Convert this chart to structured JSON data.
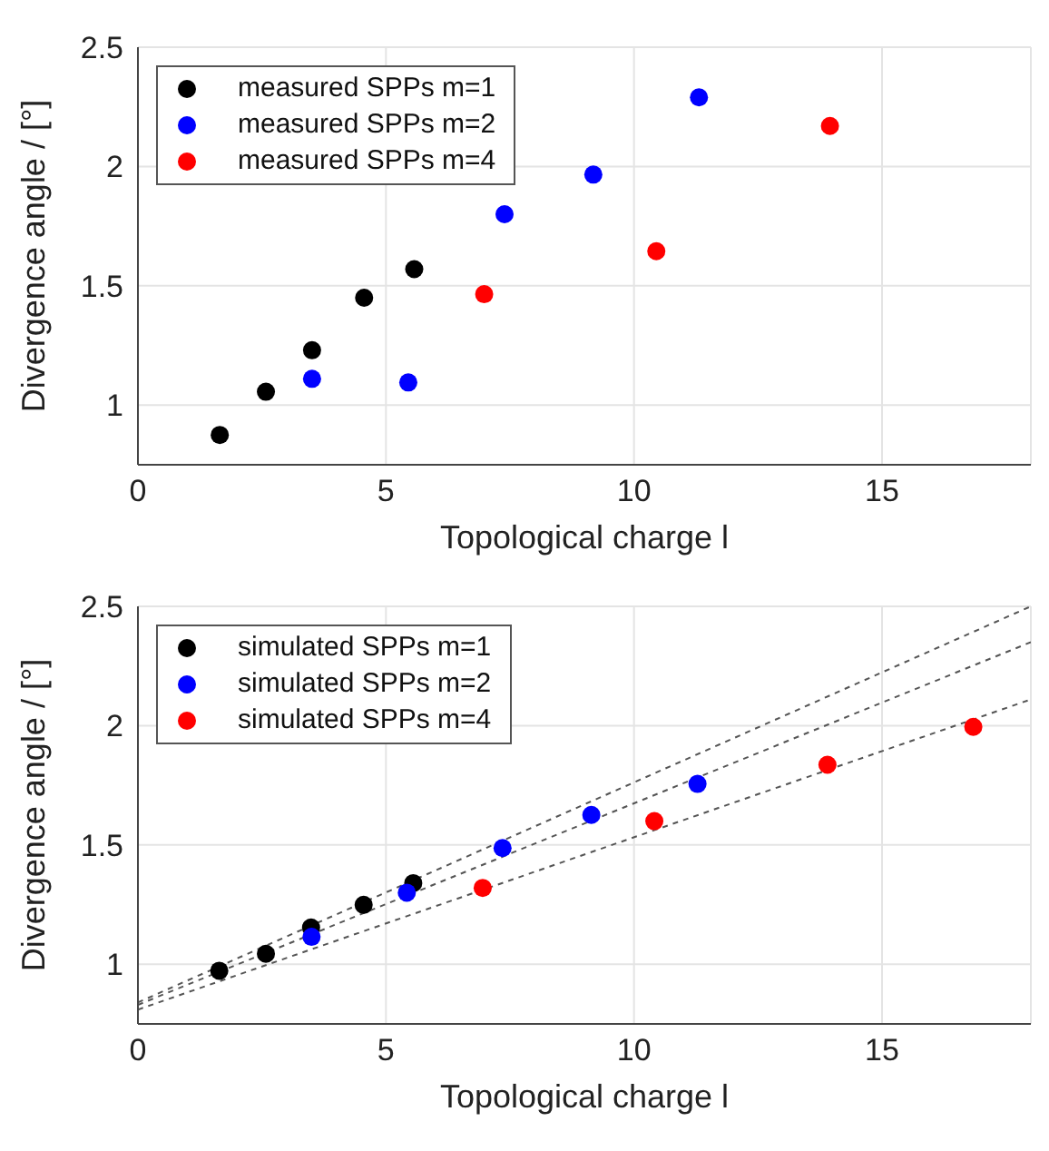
{
  "chart_data": [
    {
      "type": "scatter",
      "xlabel": "Topological charge l",
      "ylabel": "Divergence angle / [°]",
      "xlim": [
        0,
        18
      ],
      "ylim": [
        0.75,
        2.5
      ],
      "xticks": [
        0,
        5,
        10,
        15
      ],
      "yticks": [
        1,
        1.5,
        2,
        2.5
      ],
      "grid": true,
      "legend": "top left",
      "marker": "circle",
      "series": [
        {
          "name": "measured SPPs m=1",
          "color": "#000000",
          "x": [
            1.65,
            2.58,
            3.51,
            4.56,
            5.57
          ],
          "values": [
            0.875,
            1.056,
            1.23,
            1.45,
            1.57
          ]
        },
        {
          "name": "measured SPPs m=2",
          "color": "#0000ff",
          "x": [
            3.51,
            5.45,
            7.39,
            9.18,
            11.31
          ],
          "values": [
            1.11,
            1.095,
            1.8,
            1.966,
            2.29
          ]
        },
        {
          "name": "measured SPPs m=4",
          "color": "#ff0000",
          "x": [
            6.98,
            10.45,
            13.95
          ],
          "values": [
            1.465,
            1.645,
            2.17
          ]
        }
      ]
    },
    {
      "type": "scatter",
      "xlabel": "Topological charge l",
      "ylabel": "Divergence angle / [°]",
      "xlim": [
        0,
        18
      ],
      "ylim": [
        0.75,
        2.5
      ],
      "xticks": [
        0,
        5,
        10,
        15
      ],
      "yticks": [
        1,
        1.5,
        2,
        2.5
      ],
      "grid": true,
      "legend": "top left",
      "marker": "circle",
      "series": [
        {
          "type": "line",
          "color": "#555555",
          "line_style": "dashed",
          "marker": "none",
          "x": [
            0,
            18
          ],
          "values": [
            0.84,
            2.5
          ]
        },
        {
          "type": "line",
          "color": "#555555",
          "line_style": "dashed",
          "marker": "none",
          "x": [
            0,
            18
          ],
          "values": [
            0.83,
            2.35
          ]
        },
        {
          "type": "line",
          "color": "#555555",
          "line_style": "dashed",
          "marker": "none",
          "x": [
            0,
            18
          ],
          "values": [
            0.81,
            2.11
          ]
        },
        {
          "name": "simulated SPPs m=1",
          "color": "#000000",
          "x": [
            1.64,
            2.58,
            3.49,
            4.55,
            5.55
          ],
          "values": [
            0.973,
            1.044,
            1.154,
            1.249,
            1.34
          ]
        },
        {
          "name": "simulated SPPs m=2",
          "color": "#0000ff",
          "x": [
            3.5,
            5.42,
            7.35,
            9.14,
            11.28
          ],
          "values": [
            1.115,
            1.3,
            1.487,
            1.626,
            1.756
          ]
        },
        {
          "name": "simulated SPPs m=4",
          "color": "#ff0000",
          "x": [
            6.95,
            10.41,
            13.9,
            16.84
          ],
          "values": [
            1.32,
            1.6,
            1.836,
            1.995
          ]
        }
      ]
    }
  ]
}
